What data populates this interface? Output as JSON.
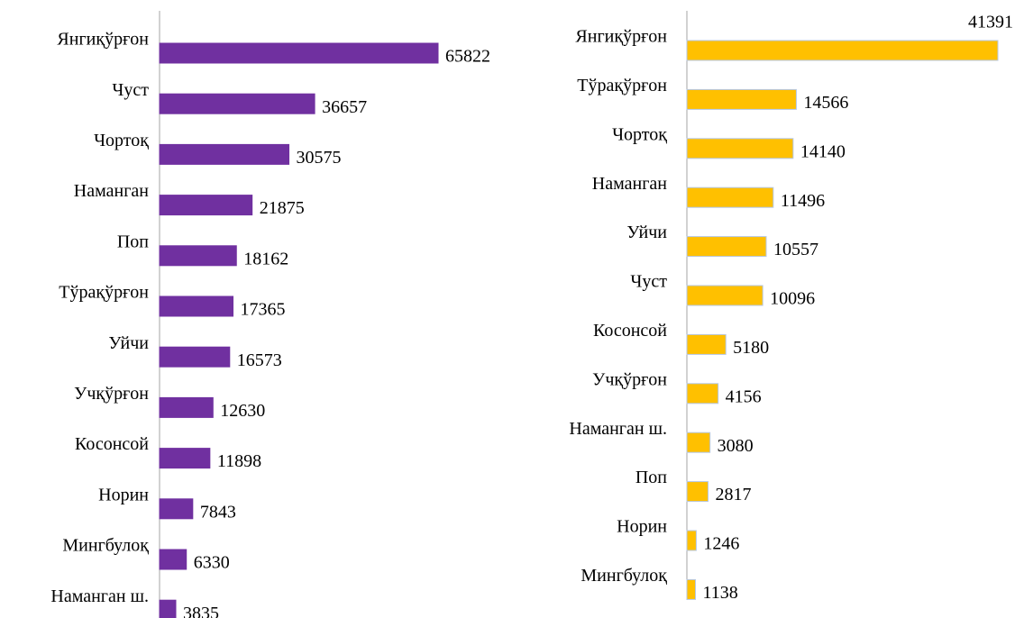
{
  "chart_data": [
    {
      "type": "bar",
      "orientation": "horizontal",
      "color": "#7030a0",
      "categories": [
        "Янгиқўрғон",
        "Чуст",
        "Чортоқ",
        "Наманган",
        "Поп",
        "Тўрақўрғон",
        "Уйчи",
        "Учқўрғон",
        "Косонсой",
        "Норин",
        "Мингбулоқ",
        "Наманган ш."
      ],
      "values": [
        65822,
        36657,
        30575,
        21875,
        18162,
        17365,
        16573,
        12630,
        11898,
        7843,
        6330,
        3835
      ]
    },
    {
      "type": "bar",
      "orientation": "horizontal",
      "color": "#ffc000",
      "categories": [
        "Янгиқўрғон",
        "Тўрақўрғон",
        "Чортоқ",
        "Наманган",
        "Уйчи",
        "Чуст",
        "Косонсой",
        "Учқўрғон",
        "Наманган ш.",
        "Поп",
        "Норин",
        "Мингбулоқ"
      ],
      "values": [
        41391,
        14566,
        14140,
        11496,
        10557,
        10096,
        5180,
        4156,
        3080,
        2817,
        1246,
        1138
      ]
    }
  ]
}
